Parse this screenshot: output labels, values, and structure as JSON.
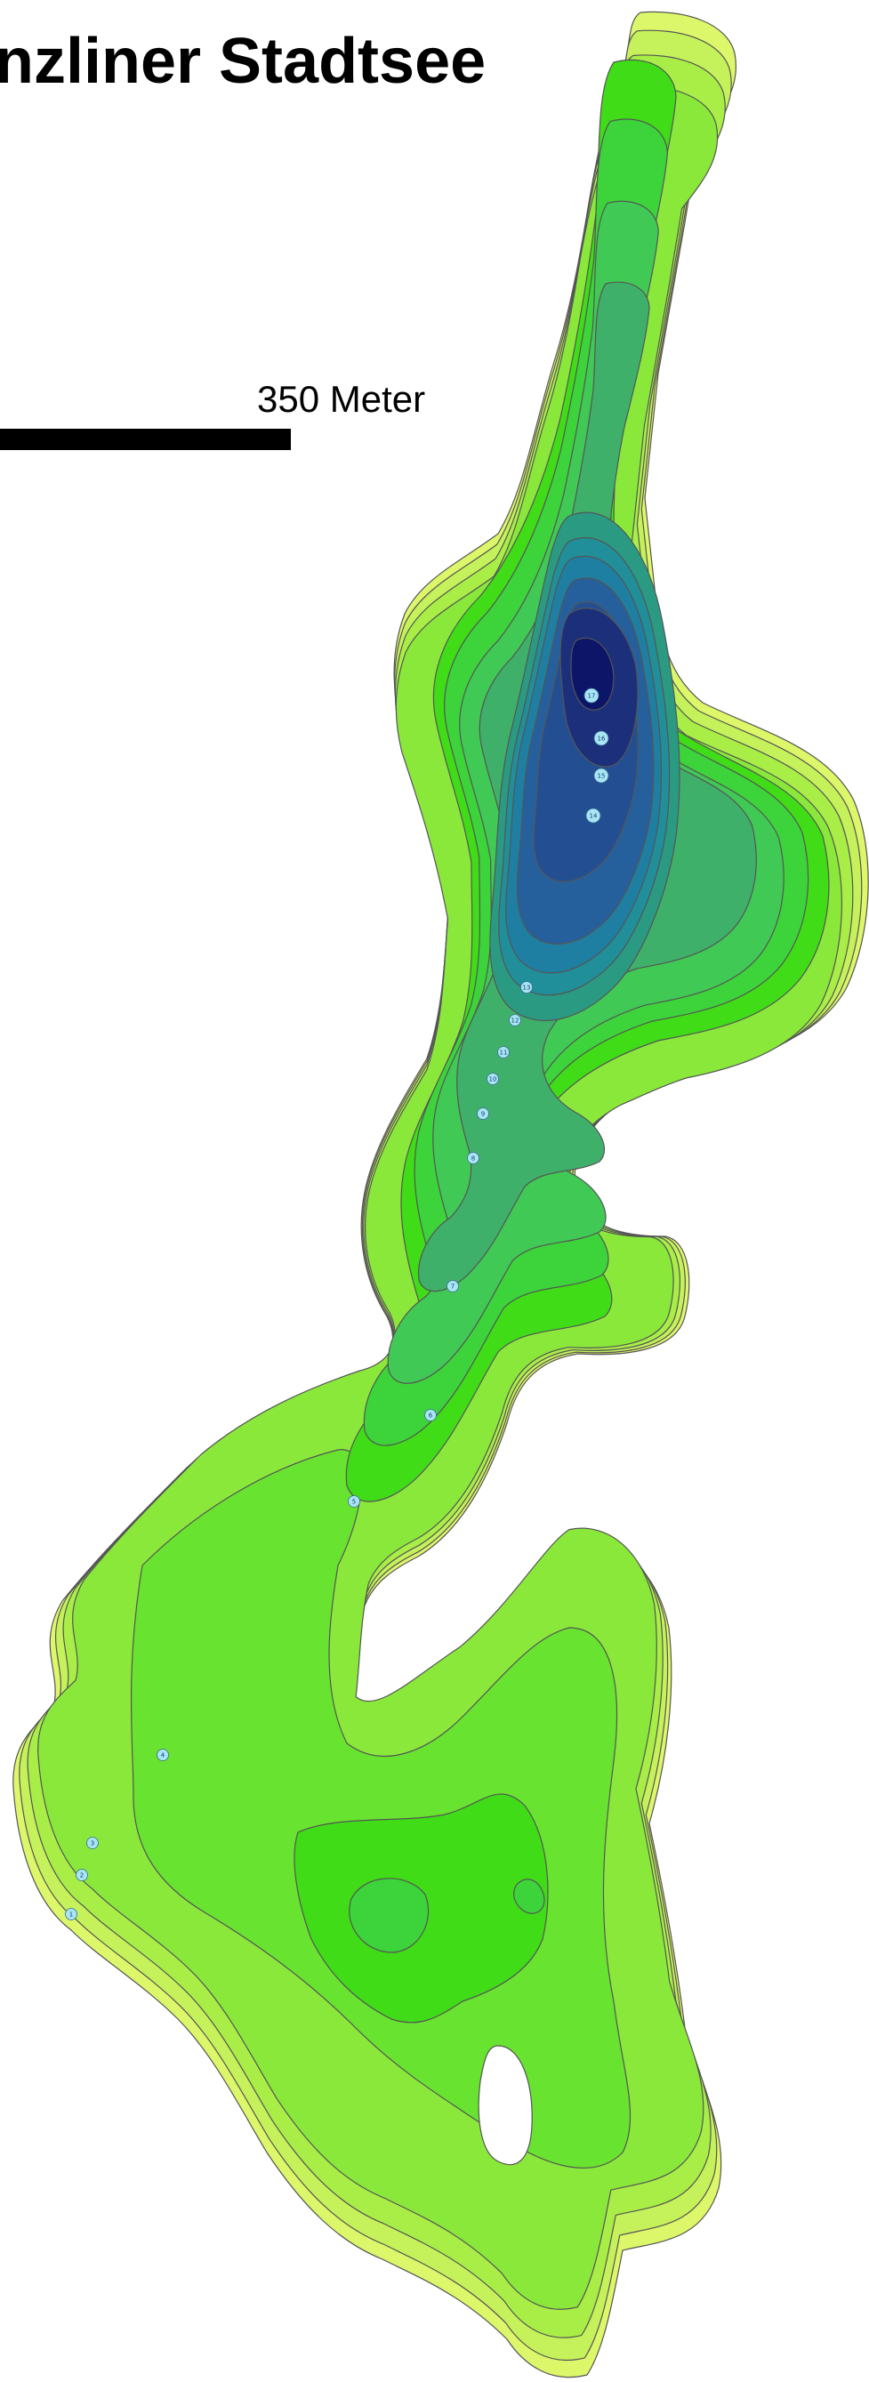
{
  "title": "nzliner Stadtsee",
  "scale": {
    "value": "350",
    "unit": "Meter"
  },
  "colors": {
    "shore": "#ddf76a",
    "shallow": [
      "#ddf76a",
      "#c5f25b",
      "#a9ee47",
      "#8ae83b",
      "#68e32f",
      "#3fdc17"
    ],
    "mid": [
      "#3cd43a",
      "#40c954",
      "#3fb06a",
      "#2b9a82",
      "#208f99",
      "#1e7fa3"
    ],
    "deep": [
      "#26609c",
      "#234f92",
      "#1b2f7a",
      "#0d1569"
    ],
    "outline": "#555555",
    "label_fill": "#a8e6f5"
  },
  "depth_markers": [
    "17",
    "16",
    "15",
    "14",
    "13",
    "12",
    "11",
    "10",
    "9",
    "8",
    "7",
    "6",
    "5",
    "4",
    "3",
    "2",
    "1"
  ]
}
